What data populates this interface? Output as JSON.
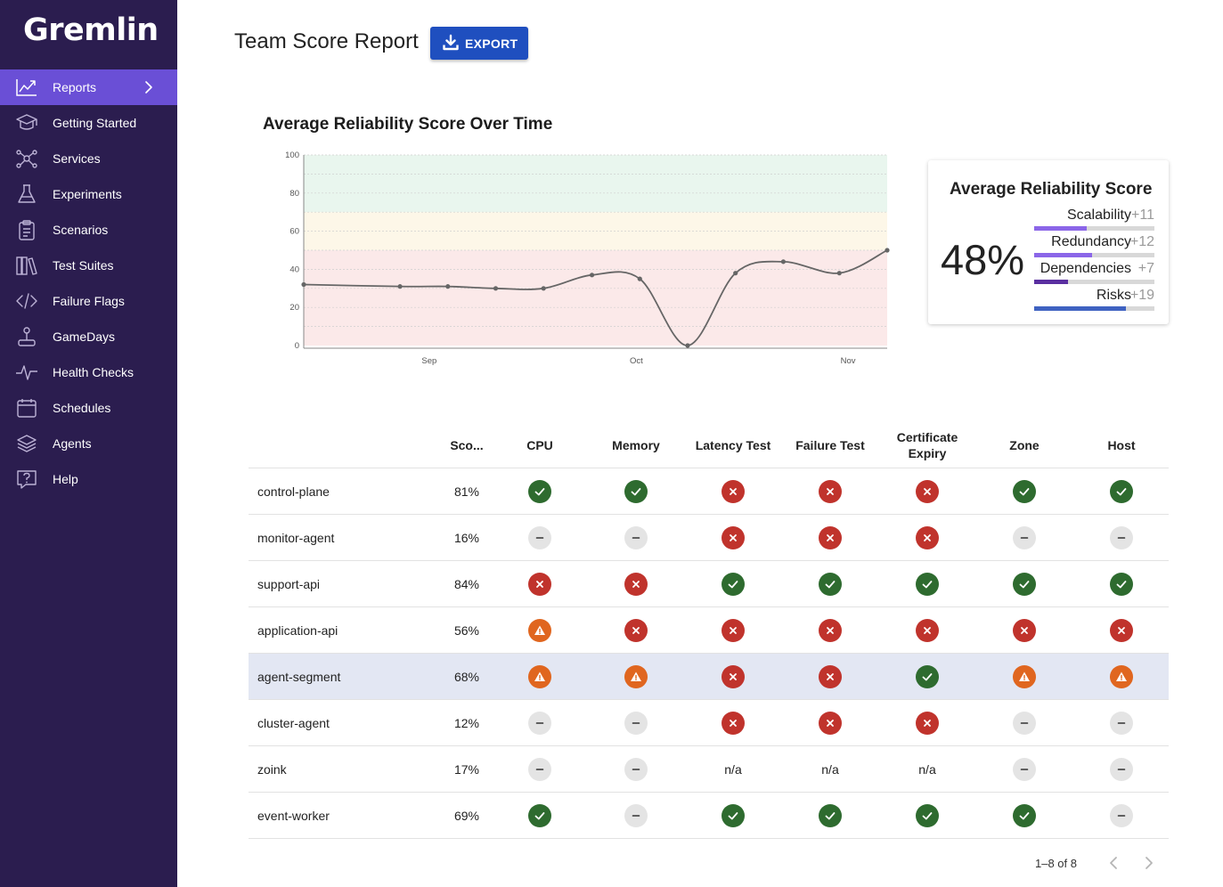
{
  "app": {
    "logo": "Gremlin"
  },
  "sidebar": {
    "items": [
      {
        "label": "Reports",
        "icon": "trending-up-icon",
        "active": true
      },
      {
        "label": "Getting Started",
        "icon": "graduation-cap-icon"
      },
      {
        "label": "Services",
        "icon": "nodes-icon"
      },
      {
        "label": "Experiments",
        "icon": "flask-icon"
      },
      {
        "label": "Scenarios",
        "icon": "clipboard-icon"
      },
      {
        "label": "Test Suites",
        "icon": "books-icon"
      },
      {
        "label": "Failure Flags",
        "icon": "code-icon"
      },
      {
        "label": "GameDays",
        "icon": "joystick-icon"
      },
      {
        "label": "Health Checks",
        "icon": "pulse-icon"
      },
      {
        "label": "Schedules",
        "icon": "calendar-icon"
      },
      {
        "label": "Agents",
        "icon": "layers-icon"
      },
      {
        "label": "Help",
        "icon": "help-icon"
      }
    ]
  },
  "header": {
    "title": "Team Score Report",
    "export_label": "EXPORT"
  },
  "chart": {
    "title": "Average Reliability Score Over Time",
    "bands": [
      {
        "from": 0,
        "to": 50,
        "color": "#fbe9e9"
      },
      {
        "from": 50,
        "to": 70,
        "color": "#fdf7e8"
      },
      {
        "from": 70,
        "to": 100,
        "color": "#e9f6ee"
      }
    ]
  },
  "chart_data": {
    "type": "line",
    "title": "Average Reliability Score Over Time",
    "xlabel": "",
    "ylabel": "",
    "ylim": [
      0,
      100
    ],
    "yticks": [
      0,
      20,
      40,
      60,
      80,
      100
    ],
    "xtick_labels": [
      {
        "label": "Sep",
        "t": 0.215
      },
      {
        "label": "Oct",
        "t": 0.57
      },
      {
        "label": "Nov",
        "t": 0.933
      }
    ],
    "grid": true,
    "series": [
      {
        "color": "#666666",
        "points": [
          {
            "t": 0.0,
            "y": 32
          },
          {
            "t": 0.165,
            "y": 31
          },
          {
            "t": 0.247,
            "y": 31
          },
          {
            "t": 0.329,
            "y": 30
          },
          {
            "t": 0.411,
            "y": 30
          },
          {
            "t": 0.494,
            "y": 37
          },
          {
            "t": 0.576,
            "y": 35
          },
          {
            "t": 0.658,
            "y": 0
          },
          {
            "t": 0.74,
            "y": 38
          },
          {
            "t": 0.822,
            "y": 44
          },
          {
            "t": 0.918,
            "y": 38
          },
          {
            "t": 1.0,
            "y": 50
          }
        ]
      }
    ]
  },
  "score_card": {
    "title": "Average Reliability Score",
    "value": "48%",
    "metrics": [
      {
        "name": "Scalability",
        "delta": "+11",
        "fraction": 0.44,
        "color": "#8b66e8"
      },
      {
        "name": "Redundancy",
        "delta": "+12",
        "fraction": 0.48,
        "color": "#8b66e8"
      },
      {
        "name": "Dependencies",
        "delta": "+7",
        "fraction": 0.28,
        "color": "#5a2fa0"
      },
      {
        "name": "Risks",
        "delta": "+19",
        "fraction": 0.76,
        "color": "#3f62c1"
      }
    ]
  },
  "table": {
    "columns": [
      "",
      "Sco...",
      "CPU",
      "Memory",
      "Latency Test",
      "Failure Test",
      "Certificate Expiry",
      "Zone",
      "Host"
    ],
    "rows": [
      {
        "name": "control-plane",
        "score": "81%",
        "cells": [
          "pass",
          "pass",
          "fail",
          "fail",
          "fail",
          "pass",
          "pass"
        ]
      },
      {
        "name": "monitor-agent",
        "score": "16%",
        "cells": [
          "none",
          "none",
          "fail",
          "fail",
          "fail",
          "none",
          "none"
        ]
      },
      {
        "name": "support-api",
        "score": "84%",
        "cells": [
          "fail",
          "fail",
          "pass",
          "pass",
          "pass",
          "pass",
          "pass"
        ]
      },
      {
        "name": "application-api",
        "score": "56%",
        "cells": [
          "warn",
          "fail",
          "fail",
          "fail",
          "fail",
          "fail",
          "fail"
        ]
      },
      {
        "name": "agent-segment",
        "score": "68%",
        "highlight": true,
        "cells": [
          "warn",
          "warn",
          "fail",
          "fail",
          "pass",
          "warn",
          "warn"
        ]
      },
      {
        "name": "cluster-agent",
        "score": "12%",
        "cells": [
          "none",
          "none",
          "fail",
          "fail",
          "fail",
          "none",
          "none"
        ]
      },
      {
        "name": "zoink",
        "score": "17%",
        "cells": [
          "none",
          "none",
          "n/a",
          "n/a",
          "n/a",
          "none",
          "none"
        ]
      },
      {
        "name": "event-worker",
        "score": "69%",
        "cells": [
          "pass",
          "none",
          "pass",
          "pass",
          "pass",
          "pass",
          "none"
        ]
      }
    ]
  },
  "pagination": {
    "text": "1–8 of 8"
  }
}
